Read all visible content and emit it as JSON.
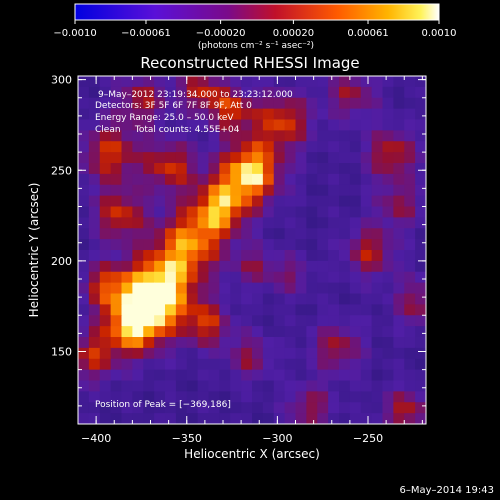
{
  "chart_data": {
    "type": "heatmap",
    "title": "Reconstructed RHESSI Image",
    "xlabel": "Heliocentric X (arcsec)",
    "ylabel": "Heliocentric Y (arcsec)",
    "xlim": [
      -410,
      -218
    ],
    "ylim": [
      110,
      302
    ],
    "xticks": [
      -400,
      -350,
      -300,
      -250
    ],
    "yticks": [
      150,
      200,
      250,
      300
    ],
    "colormap": "Rainbow + white (blue-purple-red-orange-yellow-white)",
    "colorbar": {
      "range": [
        -0.001,
        0.001
      ],
      "tick_values": [
        -0.001,
        -0.00061,
        -0.0002,
        0.0002,
        0.00061,
        0.001
      ],
      "tick_labels": [
        "−0.0010",
        "−0.00061",
        "−0.00020",
        "0.00020",
        "0.00061",
        "0.0010"
      ],
      "units_label": "(photons cm⁻² s⁻¹ asec⁻²)"
    },
    "annotations": {
      "time_range": "9–May–2012 23:19:34.000 to 23:23:12.000",
      "detectors": "Detectors: 3F 5F 6F 7F 8F 9F, Att 0",
      "energy_range": "Energy Range: 25.0 – 50.0 keV",
      "method_counts": "Clean     Total counts: 4.55E+04",
      "peak_position": "Position of Peak = [−369,186]"
    },
    "peak_position": [
      -369,
      186
    ],
    "colors": {
      "negative": "#4a1fa8",
      "zero": "#8a1040",
      "positive_low": "#c62a00",
      "positive_mid": "#ff8a00",
      "positive_high": "#ffd83a",
      "max": "#ffffff"
    },
    "grid": false
  },
  "footer": {
    "timestamp": "6–May–2014 19:43"
  }
}
